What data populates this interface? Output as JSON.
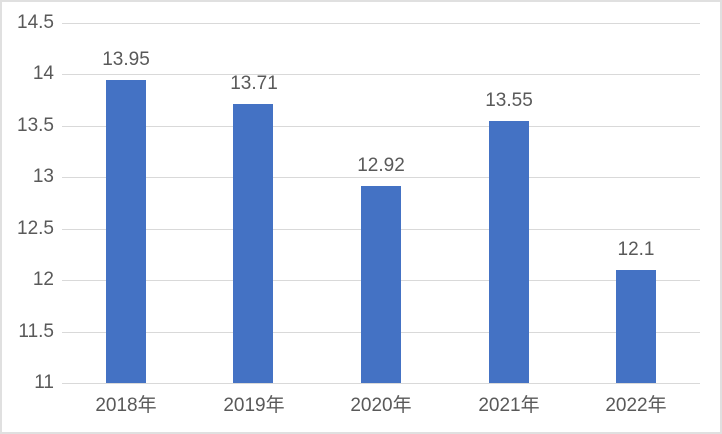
{
  "chart_data": {
    "type": "bar",
    "title": "",
    "xlabel": "",
    "ylabel": "",
    "categories": [
      "2018年",
      "2019年",
      "2020年",
      "2021年",
      "2022年"
    ],
    "values": [
      13.95,
      13.71,
      12.92,
      13.55,
      12.1
    ],
    "value_labels": [
      "13.95",
      "13.71",
      "12.92",
      "13.55",
      "12.1"
    ],
    "ylim": [
      11,
      14.5
    ],
    "y_tick_values": [
      11,
      11.5,
      12,
      12.5,
      13,
      13.5,
      14,
      14.5
    ],
    "y_tick_labels": [
      "11",
      "11.5",
      "12",
      "12.5",
      "13",
      "13.5",
      "14",
      "14.5"
    ],
    "grid": true,
    "legend_position": "none",
    "colors": {
      "bar": "#4472C4",
      "gridline": "#D9D9D9",
      "text": "#595959",
      "background": "#FFFFFF",
      "frame_border": "#E0E0E0"
    }
  }
}
